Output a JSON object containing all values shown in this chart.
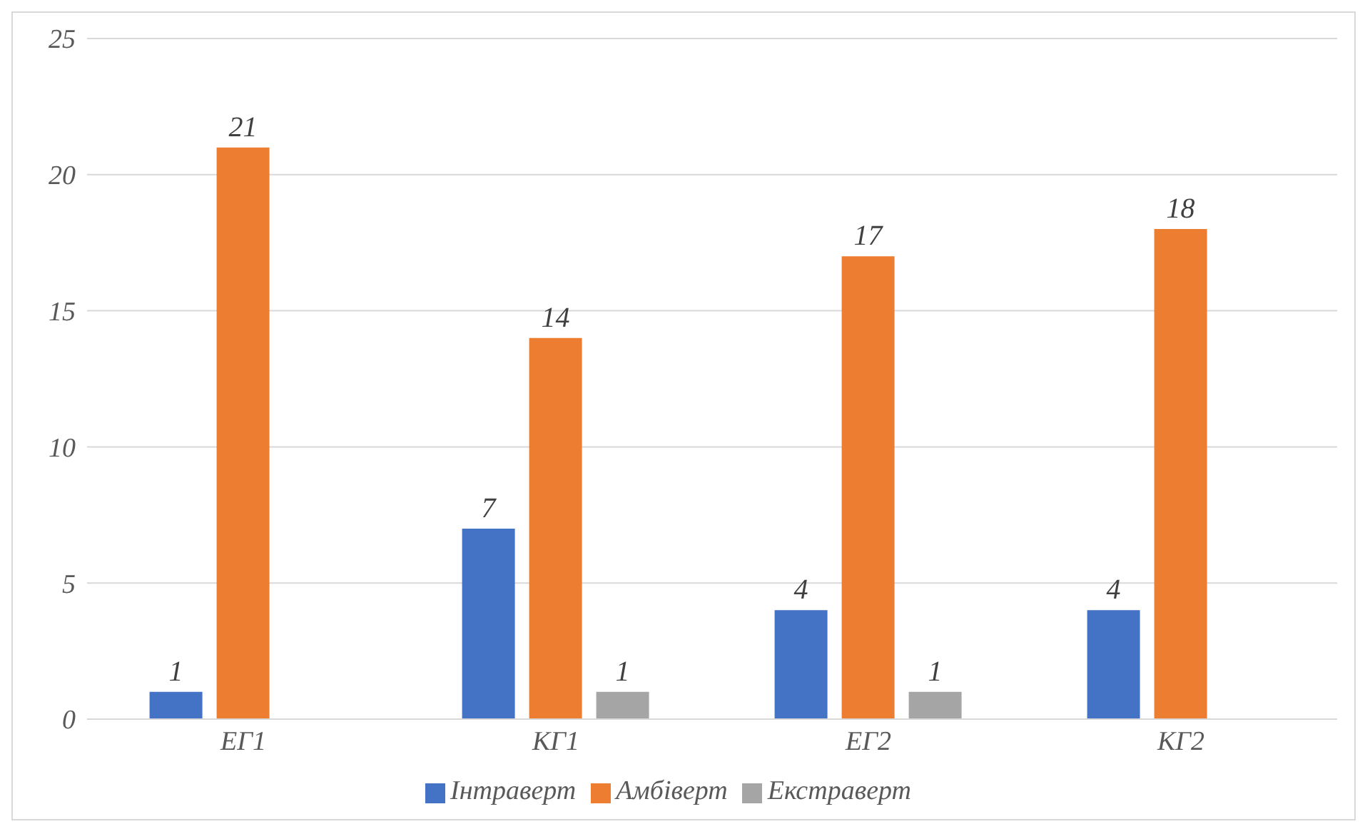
{
  "chart_data": {
    "type": "bar",
    "categories": [
      "ЕГ1",
      "КГ1",
      "ЕГ2",
      "КГ2"
    ],
    "series": [
      {
        "name": "Інтраверт",
        "color": "#4472c4",
        "values": [
          1,
          7,
          4,
          4
        ]
      },
      {
        "name": "Амбіверт",
        "color": "#ed7d31",
        "values": [
          21,
          14,
          17,
          18
        ]
      },
      {
        "name": "Екстраверт",
        "color": "#a5a5a5",
        "values": [
          null,
          1,
          1,
          null
        ]
      }
    ],
    "ylim": [
      0,
      25
    ],
    "yticks": [
      0,
      5,
      10,
      15,
      20,
      25
    ],
    "grid": "y",
    "legend": "bottom",
    "data_labels": true
  }
}
